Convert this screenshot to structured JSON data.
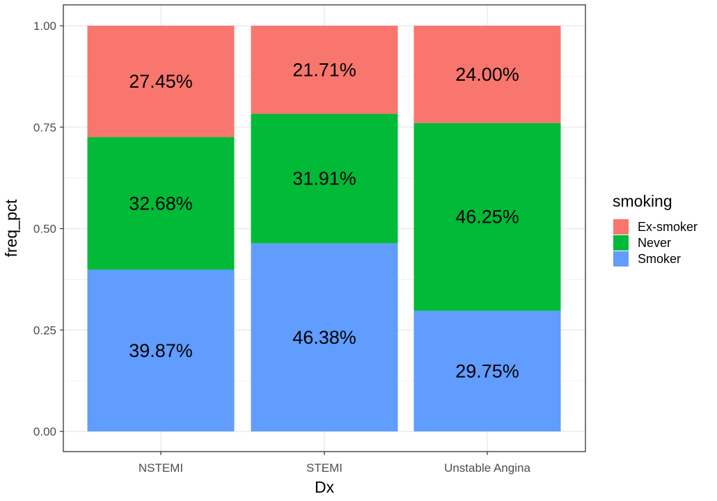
{
  "chart_data": {
    "type": "bar",
    "stacked": true,
    "categories": [
      "NSTEMI",
      "STEMI",
      "Unstable Angina"
    ],
    "series": [
      {
        "name": "Smoker",
        "color": "#619CFF",
        "values": [
          0.3987,
          0.4638,
          0.2975
        ],
        "labels": [
          "39.87%",
          "46.38%",
          "29.75%"
        ]
      },
      {
        "name": "Never",
        "color": "#00BA38",
        "values": [
          0.3268,
          0.3191,
          0.4625
        ],
        "labels": [
          "32.68%",
          "31.91%",
          "46.25%"
        ]
      },
      {
        "name": "Ex-smoker",
        "color": "#F8766D",
        "values": [
          0.2745,
          0.2171,
          0.24
        ],
        "labels": [
          "27.45%",
          "21.71%",
          "24.00%"
        ]
      }
    ],
    "xlabel": "Dx",
    "ylabel": "freq_pct",
    "ylim": [
      0,
      1
    ],
    "yticks": [
      "0.00",
      "0.25",
      "0.50",
      "0.75",
      "1.00"
    ],
    "grid": true,
    "legend": {
      "title": "smoking",
      "placement": "right",
      "items": [
        "Ex-smoker",
        "Never",
        "Smoker"
      ]
    }
  }
}
